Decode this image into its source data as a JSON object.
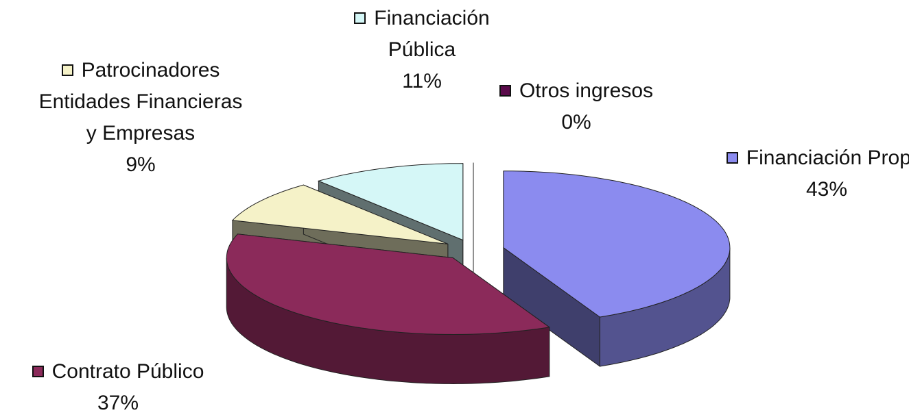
{
  "chart_data": {
    "type": "pie3d",
    "categories": [
      "Financiación Propia",
      "Contrato Público",
      "Patrocinadores Entidades Financieras y Empresas",
      "Financiación Pública",
      "Otros ingresos"
    ],
    "values": [
      43,
      37,
      9,
      11,
      0
    ],
    "value_labels": [
      "43%",
      "37%",
      "9%",
      "11%",
      "0%"
    ],
    "colors": [
      "#8b8bef",
      "#8b2a5a",
      "#f5f2c8",
      "#d5f7f7",
      "#5a0a4a"
    ]
  }
}
